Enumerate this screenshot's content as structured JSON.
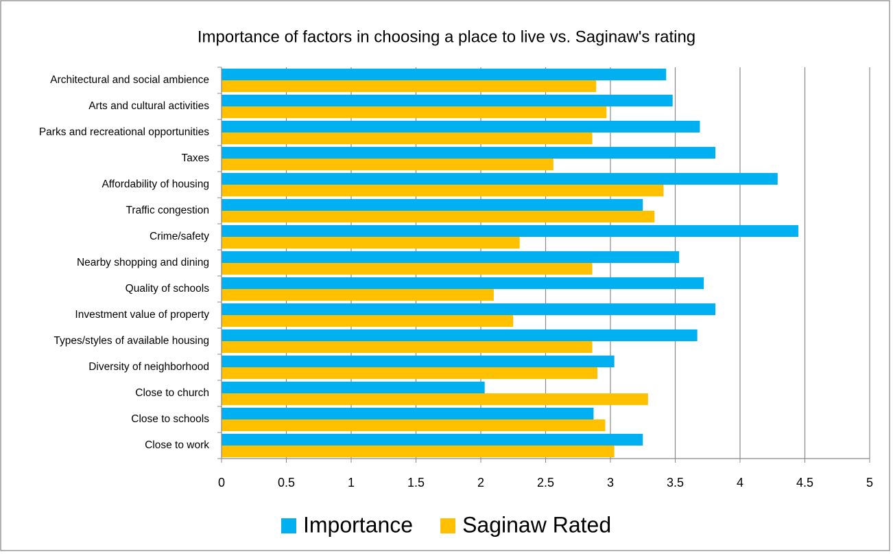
{
  "chart_data": {
    "type": "barh",
    "title": "Importance of factors in choosing a place to live vs. Saginaw's rating",
    "categories": [
      "Architectural and social ambience",
      "Arts and cultural activities",
      "Parks and recreational opportunities",
      "Taxes",
      "Affordability of housing",
      "Traffic congestion",
      "Crime/safety",
      "Nearby shopping and dining",
      "Quality of schools",
      "Investment value of property",
      "Types/styles of available housing",
      "Diversity of neighborhood",
      "Close to church",
      "Close to schools",
      "Close to work"
    ],
    "series": [
      {
        "name": "Importance",
        "color": "#00b0f0",
        "values": [
          3.43,
          3.48,
          3.69,
          3.81,
          4.29,
          3.25,
          4.45,
          3.53,
          3.72,
          3.81,
          3.67,
          3.03,
          2.03,
          2.87,
          3.25
        ]
      },
      {
        "name": "Saginaw Rated",
        "color": "#ffc000",
        "values": [
          2.89,
          2.97,
          2.86,
          2.56,
          3.41,
          3.34,
          2.3,
          2.86,
          2.1,
          2.25,
          2.86,
          2.9,
          3.29,
          2.96,
          3.03
        ]
      }
    ],
    "xlim": [
      0,
      5
    ],
    "xticks": [
      0,
      0.5,
      1,
      1.5,
      2,
      2.5,
      3,
      3.5,
      4,
      4.5,
      5
    ],
    "grid": true,
    "legend": "bottom"
  }
}
